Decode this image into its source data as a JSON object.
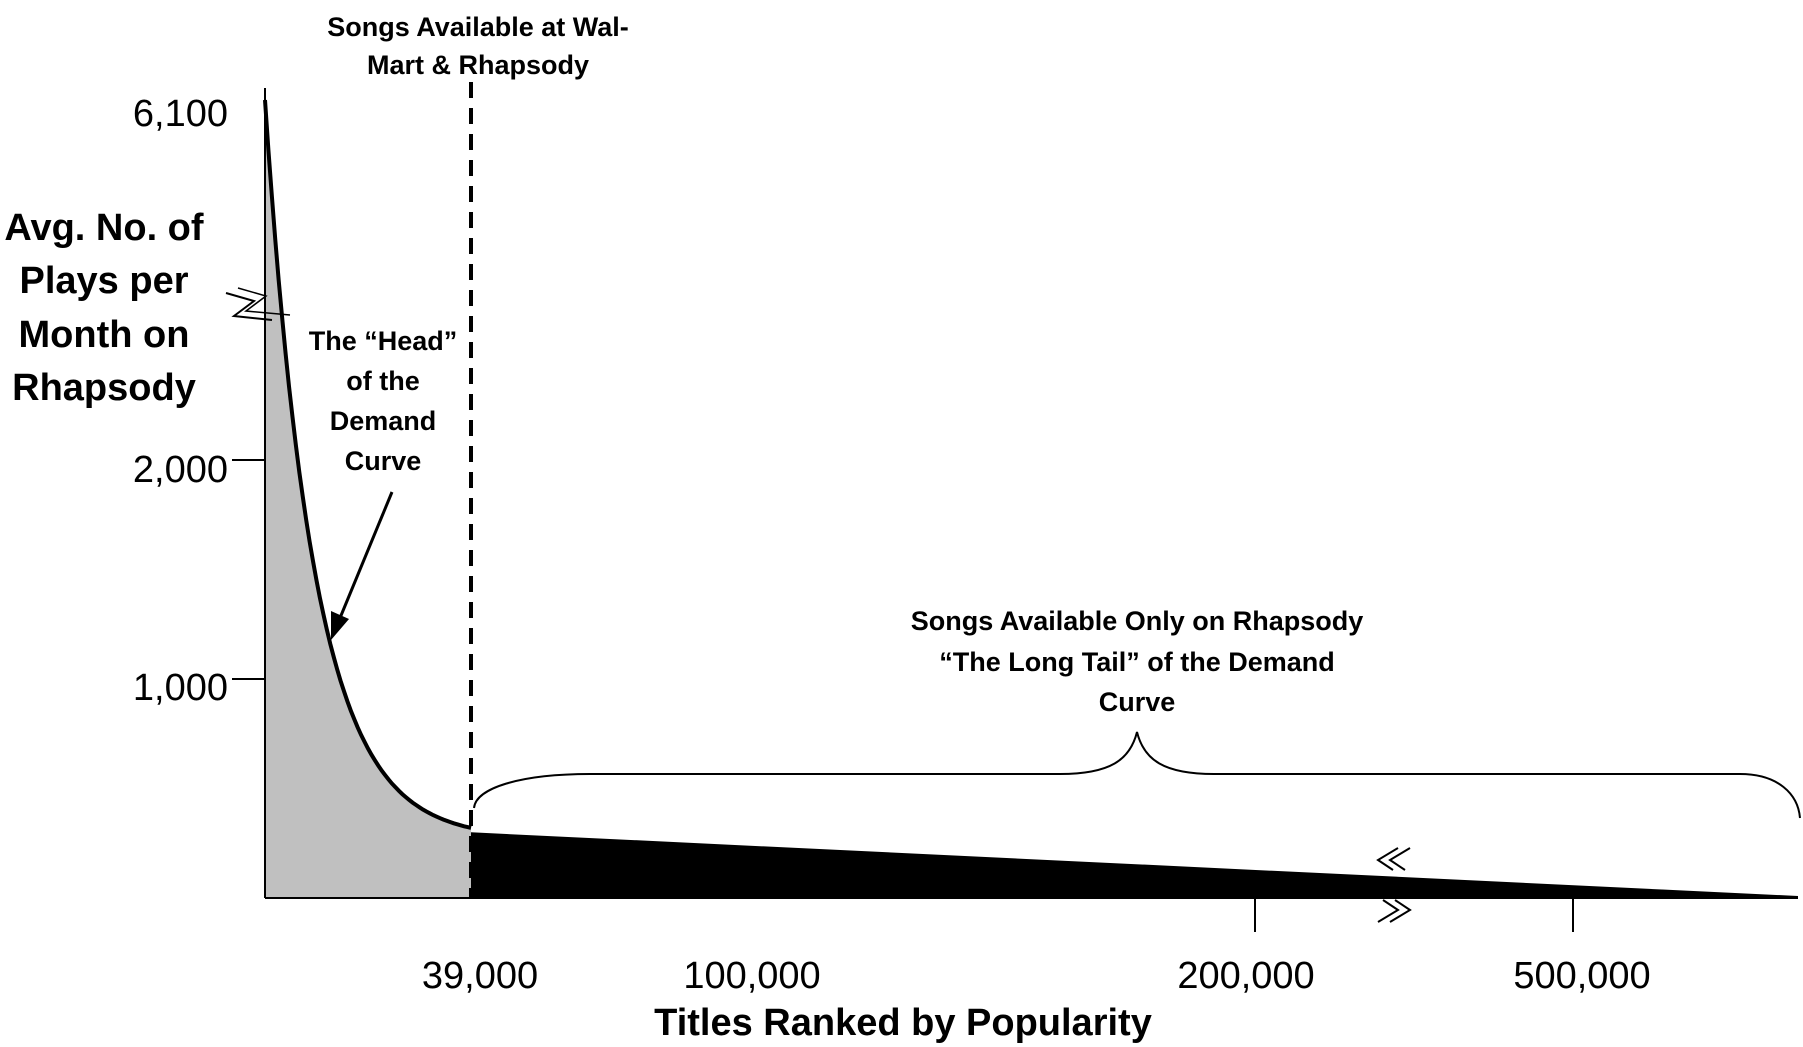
{
  "chart_data": {
    "type": "area",
    "xlabel": "Titles Ranked by Popularity",
    "ylabel": [
      "Avg. No. of",
      "Plays per",
      "Month on",
      "Rhapsody"
    ],
    "y_ticks": [
      "6,100",
      "2,000",
      "1,000"
    ],
    "x_ticks": [
      "39,000",
      "100,000",
      "200,000",
      "500,000"
    ],
    "axis_breaks": [
      "y-axis",
      "x-axis"
    ],
    "series": [
      {
        "name": "",
        "color": "#c0c0c0",
        "x": [
          0,
          39000
        ],
        "y": [
          6100,
          320
        ]
      },
      {
        "name": "",
        "color": "#000000",
        "x": [
          39000,
          500000
        ],
        "y": [
          300,
          0
        ]
      }
    ],
    "annotations": {
      "divider": [
        "Songs Available at Wal-",
        "Mart & Rhapsody"
      ],
      "head": [
        "The “Head”",
        "of the",
        "Demand",
        "Curve"
      ],
      "tail": [
        "Songs Available Only on Rhapsody",
        "“The Long Tail” of the Demand",
        "Curve"
      ]
    },
    "grid": false
  },
  "colors": {
    "head_fill": "#c0c0c0",
    "tail_fill": "#000000"
  }
}
